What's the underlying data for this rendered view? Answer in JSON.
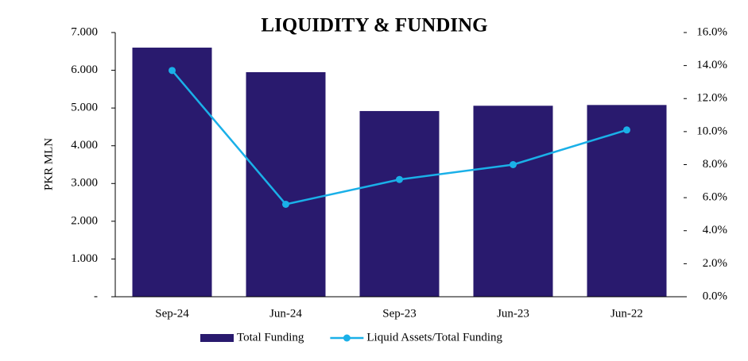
{
  "chart_data": {
    "type": "bar",
    "title": "LIQUIDITY & FUNDING",
    "y_label": "PKR MLN",
    "categories": [
      "Sep-24",
      "Jun-24",
      "Sep-23",
      "Jun-23",
      "Jun-22"
    ],
    "series": [
      {
        "name": "Total Funding",
        "type": "bar",
        "color": "#291a6e",
        "values": [
          6600,
          5950,
          4920,
          5060,
          5080
        ]
      },
      {
        "name": "Liquid Assets/Total Funding",
        "type": "line",
        "axis": "y2",
        "color": "#1ab0e8",
        "values": [
          13.7,
          5.6,
          7.1,
          8.0,
          10.1
        ]
      }
    ],
    "ylim": [
      0,
      7000
    ],
    "yticks": [
      {
        "value": 0,
        "label": "-"
      },
      {
        "value": 1000,
        "label": "1.000"
      },
      {
        "value": 2000,
        "label": "2.000"
      },
      {
        "value": 3000,
        "label": "3.000"
      },
      {
        "value": 4000,
        "label": "4.000"
      },
      {
        "value": 5000,
        "label": "5.000"
      },
      {
        "value": 6000,
        "label": "6.000"
      },
      {
        "value": 7000,
        "label": "7.000"
      }
    ],
    "y2lim": [
      0,
      16
    ],
    "y2ticks": [
      {
        "value": 0,
        "label": "0.0%"
      },
      {
        "value": 2,
        "label": "2.0%"
      },
      {
        "value": 4,
        "label": "4.0%"
      },
      {
        "value": 6,
        "label": "6.0%"
      },
      {
        "value": 8,
        "label": "8.0%"
      },
      {
        "value": 10,
        "label": "10.0%"
      },
      {
        "value": 12,
        "label": "12.0%"
      },
      {
        "value": 14,
        "label": "14.0%"
      },
      {
        "value": 16,
        "label": "16.0%"
      }
    ],
    "grid": false,
    "legend": "bottom"
  }
}
